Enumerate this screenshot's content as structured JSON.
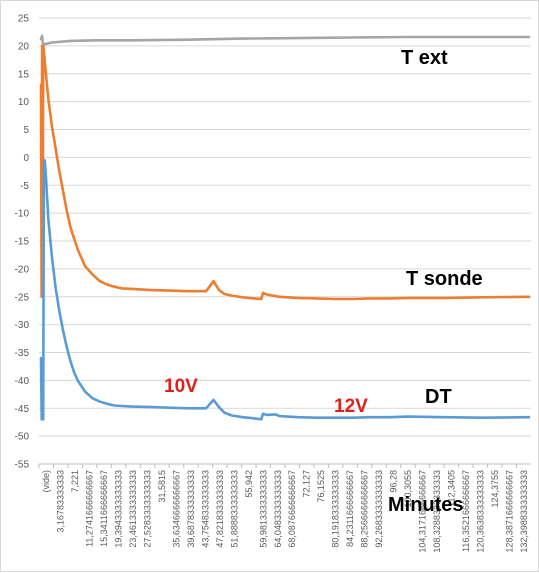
{
  "chart_data": {
    "type": "line",
    "title": "",
    "xlabel": "Minutes",
    "ylabel": "",
    "ylim": [
      -55,
      25
    ],
    "yticks": [
      25,
      20,
      15,
      10,
      5,
      0,
      -5,
      -10,
      -15,
      -20,
      -25,
      -30,
      -35,
      -40,
      -45,
      -50,
      -55
    ],
    "grid": true,
    "legend": "none",
    "xticks": [
      "(vide)",
      "3,16783333333",
      "7,221",
      "11,2741666666667",
      "15,3411666666667",
      "19,3943333333333",
      "23,4613333333333",
      "27,5283333333333",
      "31,5815",
      "35,6346666666667",
      "39,6878333333333",
      "43,7548333333333",
      "47,8218333333333",
      "51,8888333333333",
      "55,942",
      "59,9813333333333",
      "64,0483333333333",
      "68,0876666666667",
      "72,127",
      "76,1525",
      "80,1918333333333",
      "84,2311666666667",
      "88,2566666666667",
      "92,2683333333333",
      "96,28",
      "100,3055",
      "104,3171666666667",
      "108,3288333333333",
      "112,3405",
      "116,3521666666667",
      "120,3638333333333",
      "124,3755",
      "128,3871666666667",
      "132,3988333333333"
    ],
    "series": [
      {
        "name": "T ext",
        "color": "#a5a5a5",
        "x": [
          0,
          0.3,
          0.6,
          1,
          3,
          8,
          15,
          25,
          40,
          55,
          70,
          85,
          100,
          115,
          130,
          133
        ],
        "values": [
          21.2,
          21.8,
          20.0,
          20.3,
          20.6,
          20.9,
          21.0,
          21.0,
          21.1,
          21.3,
          21.4,
          21.5,
          21.6,
          21.6,
          21.6,
          21.6
        ]
      },
      {
        "name": "T sonde",
        "color": "#ed7d31",
        "x": [
          0,
          0.15,
          0.3,
          0.45,
          0.6,
          0.8,
          1.2,
          2,
          3,
          4,
          5,
          6,
          7,
          8,
          9,
          10,
          12,
          14,
          16,
          18,
          20,
          22,
          25,
          30,
          35,
          40,
          45,
          47,
          48.5,
          50,
          52,
          55,
          58,
          60,
          60.5,
          61.5,
          65,
          70,
          75,
          80,
          85,
          90,
          95,
          100,
          110,
          120,
          133
        ],
        "values": [
          13,
          -25,
          20,
          -25,
          20,
          19,
          16,
          10.5,
          5.5,
          1.5,
          -2.5,
          -6,
          -9.5,
          -12.5,
          -14.5,
          -16.5,
          -19.5,
          -21,
          -22.2,
          -22.8,
          -23.2,
          -23.5,
          -23.6,
          -23.8,
          -23.9,
          -24.0,
          -24.0,
          -22.2,
          -23.8,
          -24.5,
          -24.8,
          -25.1,
          -25.3,
          -25.4,
          -24.3,
          -24.6,
          -25.0,
          -25.2,
          -25.3,
          -25.4,
          -25.4,
          -25.3,
          -25.3,
          -25.2,
          -25.2,
          -25.1,
          -25.0
        ]
      },
      {
        "name": "DT",
        "color": "#5b9bd5",
        "x": [
          0,
          0.2,
          0.4,
          0.6,
          0.8,
          1,
          1.3,
          2,
          3,
          4,
          5,
          6,
          7,
          8,
          9,
          10,
          12,
          14,
          16,
          18,
          20,
          22,
          25,
          30,
          35,
          40,
          45,
          47,
          48.5,
          50,
          52,
          55,
          58,
          60,
          60.5,
          61.5,
          64,
          65,
          70,
          75,
          80,
          85,
          90,
          95,
          100,
          110,
          120,
          133
        ],
        "values": [
          -36,
          -47,
          -43,
          -47,
          -1,
          -0.5,
          -3,
          -11,
          -18,
          -23.5,
          -27.5,
          -31,
          -34,
          -36.5,
          -38.5,
          -40,
          -42,
          -43.2,
          -43.8,
          -44.2,
          -44.5,
          -44.6,
          -44.7,
          -44.8,
          -44.9,
          -45.0,
          -45.0,
          -43.5,
          -44.8,
          -45.8,
          -46.3,
          -46.6,
          -46.8,
          -47.0,
          -46.0,
          -46.2,
          -46.1,
          -46.4,
          -46.6,
          -46.7,
          -46.7,
          -46.7,
          -46.6,
          -46.6,
          -46.5,
          -46.6,
          -46.7,
          -46.6
        ]
      }
    ],
    "series_labels": [
      {
        "text": "T ext",
        "color": "#000000"
      },
      {
        "text": "T sonde",
        "color": "#000000"
      },
      {
        "text": "DT",
        "color": "#000000"
      }
    ],
    "annotations": [
      {
        "text": "10V",
        "color": "#e0201a"
      },
      {
        "text": "12V",
        "color": "#e0201a"
      }
    ]
  }
}
